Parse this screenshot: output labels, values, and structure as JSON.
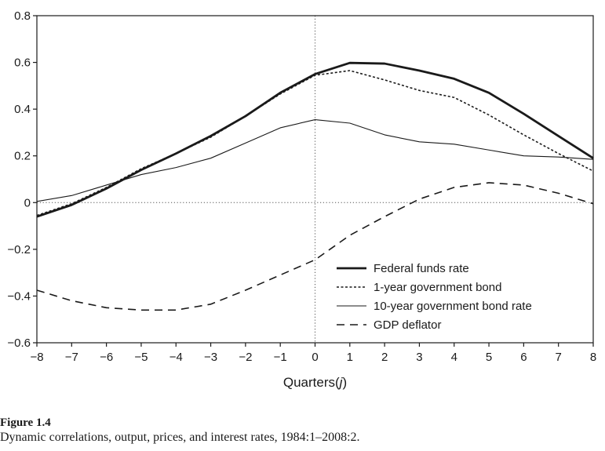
{
  "chart_data": {
    "type": "line",
    "xlabel": "Quarters(j)",
    "xlabel_parts": [
      "Quarters(",
      "j",
      ")"
    ],
    "ylabel": "",
    "xlim": [
      -8,
      8
    ],
    "ylim": [
      -0.6,
      0.8
    ],
    "x_ticks": [
      "−8",
      "−7",
      "−6",
      "−5",
      "−4",
      "−3",
      "−2",
      "−1",
      "0",
      "1",
      "2",
      "3",
      "4",
      "5",
      "6",
      "7",
      "8"
    ],
    "y_ticks": [
      "−0.6",
      "−0.4",
      "−0.2",
      "0",
      "0.2",
      "0.4",
      "0.6",
      "0.8"
    ],
    "x": [
      -8,
      -7,
      -6,
      -5,
      -4,
      -3,
      -2,
      -1,
      0,
      1,
      2,
      3,
      4,
      5,
      6,
      7,
      8
    ],
    "grid": false,
    "reference_lines": {
      "x": 0,
      "y": 0,
      "style": "dotted"
    },
    "legend_placement": "bottom-right",
    "series": [
      {
        "name": "Federal funds rate",
        "style": "solid-thick",
        "values": [
          -0.06,
          -0.01,
          0.06,
          0.14,
          0.21,
          0.285,
          0.37,
          0.47,
          0.55,
          0.598,
          0.595,
          0.565,
          0.53,
          0.47,
          0.38,
          0.285,
          0.19
        ]
      },
      {
        "name": "1-year government bond",
        "style": "dotted",
        "values": [
          -0.055,
          -0.005,
          0.065,
          0.145,
          0.21,
          0.28,
          0.37,
          0.465,
          0.545,
          0.565,
          0.525,
          0.48,
          0.45,
          0.375,
          0.29,
          0.21,
          0.135
        ]
      },
      {
        "name": "10-year government bond rate",
        "style": "solid-thin",
        "values": [
          0.005,
          0.03,
          0.075,
          0.12,
          0.15,
          0.19,
          0.255,
          0.32,
          0.355,
          0.34,
          0.29,
          0.26,
          0.25,
          0.225,
          0.2,
          0.195,
          0.185
        ]
      },
      {
        "name": "GDP deflator",
        "style": "dashed",
        "values": [
          -0.375,
          -0.42,
          -0.45,
          -0.46,
          -0.46,
          -0.435,
          -0.375,
          -0.31,
          -0.245,
          -0.14,
          -0.06,
          0.015,
          0.065,
          0.085,
          0.075,
          0.04,
          -0.005
        ]
      }
    ]
  },
  "caption": {
    "label": "Figure 1.4",
    "text": "Dynamic correlations, output, prices, and interest rates, 1984:1–2008:2."
  }
}
